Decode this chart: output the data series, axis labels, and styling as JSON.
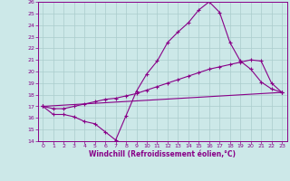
{
  "xlabel": "Windchill (Refroidissement éolien,°C)",
  "bg_color": "#cce8e8",
  "line_color": "#880088",
  "grid_color": "#aacccc",
  "xlim": [
    -0.5,
    23.5
  ],
  "ylim": [
    14,
    26
  ],
  "xticks": [
    0,
    1,
    2,
    3,
    4,
    5,
    6,
    7,
    8,
    9,
    10,
    11,
    12,
    13,
    14,
    15,
    16,
    17,
    18,
    19,
    20,
    21,
    22,
    23
  ],
  "yticks": [
    14,
    15,
    16,
    17,
    18,
    19,
    20,
    21,
    22,
    23,
    24,
    25,
    26
  ],
  "curve1_x": [
    0,
    1,
    2,
    3,
    4,
    5,
    6,
    7,
    8,
    9,
    10,
    11,
    12,
    13,
    14,
    15,
    16,
    17,
    18,
    19,
    20,
    21,
    22,
    23
  ],
  "curve1_y": [
    17.0,
    16.3,
    16.3,
    16.1,
    15.7,
    15.5,
    14.8,
    14.1,
    16.2,
    18.3,
    19.8,
    20.9,
    22.5,
    23.4,
    24.2,
    25.3,
    26.0,
    25.1,
    22.5,
    20.9,
    20.2,
    19.1,
    18.5,
    18.2
  ],
  "curve2_x": [
    0,
    1,
    2,
    3,
    4,
    5,
    6,
    7,
    8,
    9,
    10,
    11,
    12,
    13,
    14,
    15,
    16,
    17,
    18,
    19,
    20,
    21,
    22,
    23
  ],
  "curve2_y": [
    17.0,
    16.8,
    16.8,
    17.0,
    17.2,
    17.4,
    17.6,
    17.7,
    17.9,
    18.1,
    18.4,
    18.7,
    19.0,
    19.3,
    19.6,
    19.9,
    20.2,
    20.4,
    20.6,
    20.8,
    21.0,
    20.9,
    19.0,
    18.2
  ],
  "curve3_x": [
    0,
    23
  ],
  "curve3_y": [
    17.0,
    18.2
  ]
}
